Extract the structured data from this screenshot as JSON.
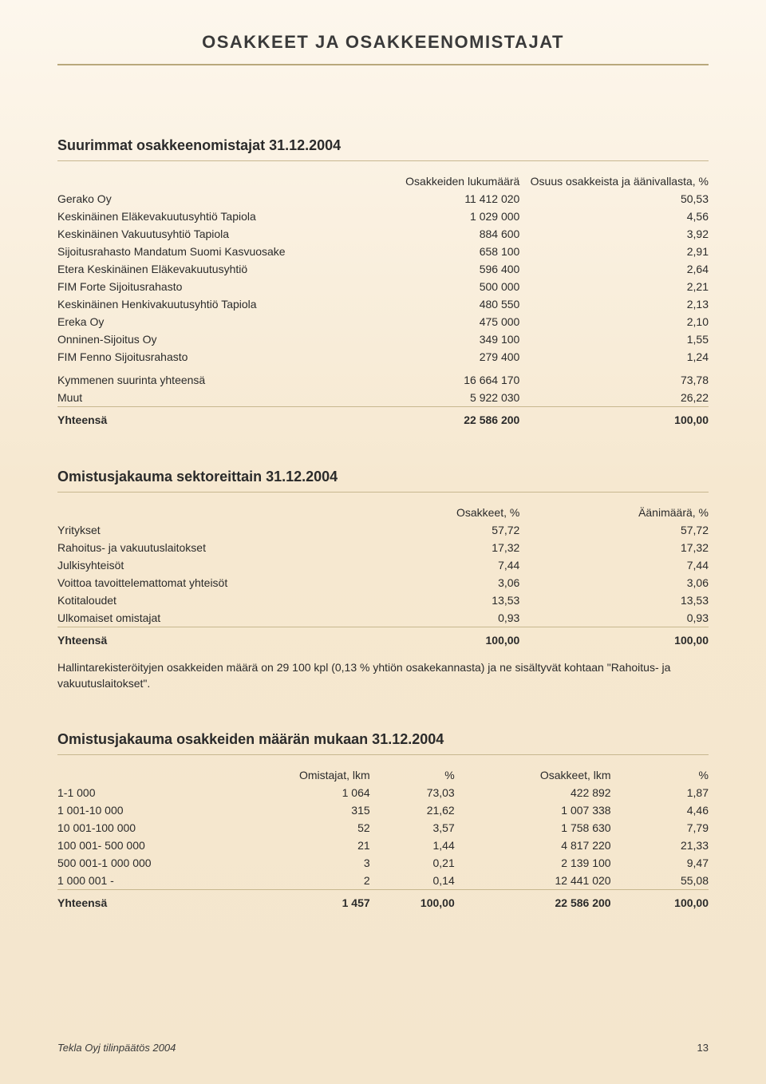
{
  "doc_title": "OSAKKEET JA OSAKKEENOMISTAJAT",
  "footer_left": "Tekla Oyj tilinpäätös 2004",
  "footer_page": "13",
  "t1": {
    "title": "Suurimmat osakkeenomistajat 31.12.2004",
    "h_shares": "Osakkeiden lukumäärä",
    "h_pct": "Osuus osakkeista ja äänivallasta, %",
    "rows": [
      {
        "n": "Gerako Oy",
        "s": "11 412 020",
        "p": "50,53"
      },
      {
        "n": "Keskinäinen Eläkevakuutusyhtiö Tapiola",
        "s": "1 029 000",
        "p": "4,56"
      },
      {
        "n": "Keskinäinen Vakuutusyhtiö Tapiola",
        "s": "884 600",
        "p": "3,92"
      },
      {
        "n": "Sijoitusrahasto Mandatum Suomi Kasvuosake",
        "s": "658 100",
        "p": "2,91"
      },
      {
        "n": "Etera Keskinäinen Eläkevakuutusyhtiö",
        "s": "596 400",
        "p": "2,64"
      },
      {
        "n": "FIM Forte Sijoitusrahasto",
        "s": "500 000",
        "p": "2,21"
      },
      {
        "n": "Keskinäinen Henkivakuutusyhtiö Tapiola",
        "s": "480 550",
        "p": "2,13"
      },
      {
        "n": "Ereka Oy",
        "s": "475 000",
        "p": "2,10"
      },
      {
        "n": "Onninen-Sijoitus Oy",
        "s": "349 100",
        "p": "1,55"
      },
      {
        "n": "FIM Fenno Sijoitusrahasto",
        "s": "279 400",
        "p": "1,24"
      }
    ],
    "sub1_n": "Kymmenen suurinta yhteensä",
    "sub1_s": "16 664 170",
    "sub1_p": "73,78",
    "sub2_n": "Muut",
    "sub2_s": "5 922 030",
    "sub2_p": "26,22",
    "tot_n": "Yhteensä",
    "tot_s": "22 586 200",
    "tot_p": "100,00"
  },
  "t2": {
    "title": "Omistusjakauma sektoreittain 31.12.2004",
    "h_shares": "Osakkeet, %",
    "h_votes": "Äänimäärä, %",
    "rows": [
      {
        "n": "Yritykset",
        "s": "57,72",
        "p": "57,72"
      },
      {
        "n": "Rahoitus- ja vakuutuslaitokset",
        "s": "17,32",
        "p": "17,32"
      },
      {
        "n": "Julkisyhteisöt",
        "s": "7,44",
        "p": "7,44"
      },
      {
        "n": "Voittoa tavoittelemattomat yhteisöt",
        "s": "3,06",
        "p": "3,06"
      },
      {
        "n": "Kotitaloudet",
        "s": "13,53",
        "p": "13,53"
      },
      {
        "n": "Ulkomaiset omistajat",
        "s": "0,93",
        "p": "0,93"
      }
    ],
    "tot_n": "Yhteensä",
    "tot_s": "100,00",
    "tot_p": "100,00",
    "note": "Hallintarekisteröityjen osakkeiden määrä on 29 100 kpl (0,13 % yhtiön osakekannasta) ja ne sisältyvät kohtaan \"Rahoitus- ja vakuutuslaitokset\"."
  },
  "t3": {
    "title": "Omistusjakauma osakkeiden määrän mukaan 31.12.2004",
    "h_owners": "Omistajat, lkm",
    "h_pct1": "%",
    "h_shares": "Osakkeet, lkm",
    "h_pct2": "%",
    "rows": [
      {
        "r": "1-1 000",
        "o": "1 064",
        "op": "73,03",
        "s": "422 892",
        "sp": "1,87"
      },
      {
        "r": "1 001-10 000",
        "o": "315",
        "op": "21,62",
        "s": "1 007 338",
        "sp": "4,46"
      },
      {
        "r": "10 001-100 000",
        "o": "52",
        "op": "3,57",
        "s": "1 758 630",
        "sp": "7,79"
      },
      {
        "r": "100 001- 500 000",
        "o": "21",
        "op": "1,44",
        "s": "4 817 220",
        "sp": "21,33"
      },
      {
        "r": "500 001-1 000 000",
        "o": "3",
        "op": "0,21",
        "s": "2 139 100",
        "sp": "9,47"
      },
      {
        "r": "1 000 001 -",
        "o": "2",
        "op": "0,14",
        "s": "12 441 020",
        "sp": "55,08"
      }
    ],
    "tot_r": "Yhteensä",
    "tot_o": "1 457",
    "tot_op": "100,00",
    "tot_s": "22 586 200",
    "tot_sp": "100,00"
  }
}
